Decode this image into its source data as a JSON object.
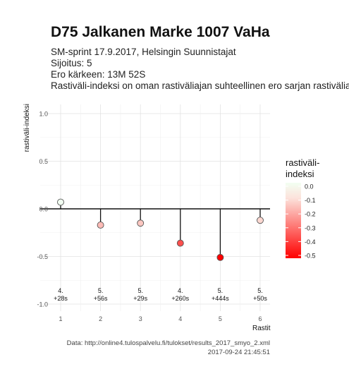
{
  "title": "D75 Jalkanen Marke 1007 VaHa",
  "subtitle_lines": [
    "SM-sprint 17.9.2017, Helsingin Suunnistajat",
    "Sijoitus: 5",
    "Ero kärkeen: 13M 52S",
    "Rastiväli-indeksi on oman rastiväliajan suhteellinen ero sarjan rastiväliajan"
  ],
  "caption_lines": [
    "Data: http://online4.tulospalvelu.fi/tulokset/results_2017_smyo_2.xml",
    "2017-09-24 21:45:51"
  ],
  "chart_data": {
    "type": "scatter",
    "xlabel": "Rastit",
    "ylabel": "rastiväli-indeksi",
    "x": [
      1,
      2,
      3,
      4,
      5,
      6
    ],
    "values": [
      0.07,
      -0.17,
      -0.15,
      -0.36,
      -0.51,
      -0.12
    ],
    "point_labels": [
      [
        "4.",
        "+28s"
      ],
      [
        "5.",
        "+56s"
      ],
      [
        "5.",
        "+29s"
      ],
      [
        "4.",
        "+260s"
      ],
      [
        "5.",
        "+444s"
      ],
      [
        "5.",
        "+50s"
      ]
    ],
    "ylim": [
      -1.0,
      1.0
    ],
    "xlim": [
      1,
      6
    ],
    "x_ticks": [
      "1",
      "2",
      "3",
      "4",
      "5",
      "6"
    ],
    "y_ticks": [
      "1.0",
      "0.5",
      "0.0",
      "-0.5",
      "-1.0"
    ],
    "y_tick_values": [
      1.0,
      0.5,
      0.0,
      -0.5,
      -1.0
    ],
    "reference_line": 0,
    "legend": {
      "title": "rastiväli-\nindeksi",
      "labels": [
        "0.0",
        "-0.1",
        "-0.2",
        "-0.3",
        "-0.4",
        "-0.5"
      ],
      "values": [
        0.0,
        -0.1,
        -0.2,
        -0.3,
        -0.4,
        -0.5
      ],
      "colors": {
        "high": "#f2fff2",
        "mid": "#fce3dc",
        "low": "#ff0000"
      }
    },
    "marker_stroke": "#555555",
    "grid": true
  }
}
